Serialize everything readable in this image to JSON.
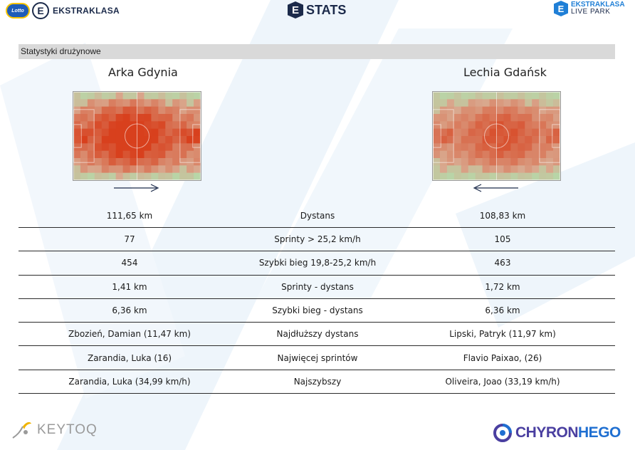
{
  "header": {
    "left_logo": {
      "badge_text": "Lotto",
      "e_letter": "E",
      "brand": "EKSTRAKLASA"
    },
    "center_logo": {
      "e_letter": "E",
      "title": "STATS"
    },
    "right_logo": {
      "e_letter": "E",
      "line1": "EKSTRAKLASA",
      "line2": "LIVE PARK"
    }
  },
  "section": {
    "title": "Statystyki drużynowe"
  },
  "teams": {
    "home": {
      "name": "Arka Gdynia",
      "attack_direction": "right"
    },
    "away": {
      "name": "Lechia Gdańsk",
      "attack_direction": "left"
    }
  },
  "stats": [
    {
      "label": "Dystans",
      "home": "111,65 km",
      "away": "108,83 km"
    },
    {
      "label": "Sprinty > 25,2 km/h",
      "home": "77",
      "away": "105"
    },
    {
      "label": "Szybki bieg 19,8-25,2 km/h",
      "home": "454",
      "away": "463"
    },
    {
      "label": "Sprinty - dystans",
      "home": "1,41 km",
      "away": "1,72 km"
    },
    {
      "label": "Szybki bieg - dystans",
      "home": "6,36 km",
      "away": "6,36 km"
    },
    {
      "label": "Najdłuższy dystans",
      "home": "Zbozień, Damian (11,47 km)",
      "away": "Lipski, Patryk (11,97 km)"
    },
    {
      "label": "Najwięcej sprintów",
      "home": "Zarandia, Luka (16)",
      "away": "Flavio Paixao,  (26)"
    },
    {
      "label": "Najszybszy",
      "home": "Zarandia, Luka (34,99 km/h)",
      "away": "Oliveira, Joao (33,19 km/h)"
    }
  ],
  "footer": {
    "left_brand": "KEYTOQ",
    "right_brand_part1": "CHYRON",
    "right_brand_part2": "HEGO"
  },
  "colors": {
    "pitch_grass": "#b7d7a8",
    "heat_low": "#d9a98f",
    "heat_high": "#d8401d",
    "navy": "#1b2a4a",
    "brand_blue": "#1f7fd6",
    "section_bar": "#d9d9d9"
  }
}
